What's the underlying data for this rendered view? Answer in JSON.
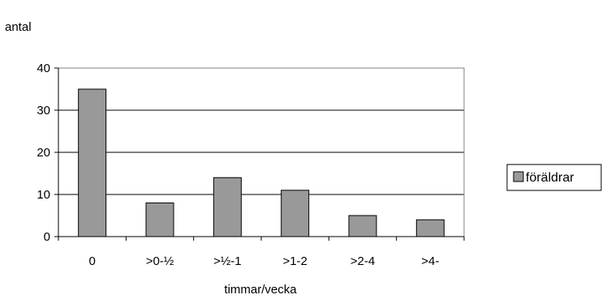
{
  "chart_data": {
    "type": "bar",
    "title": "",
    "ylabel": "antal",
    "xlabel": "timmar/vecka",
    "categories": [
      "0",
      ">0-½",
      ">½-1",
      ">1-2",
      ">2-4",
      ">4-"
    ],
    "series": [
      {
        "name": "föräldrar",
        "values": [
          35,
          8,
          14,
          11,
          5,
          4
        ]
      }
    ],
    "ylim": [
      0,
      40
    ],
    "yticks": [
      0,
      10,
      20,
      30,
      40
    ],
    "grid": true,
    "legend": "right",
    "colors": {
      "bar_fill": "#999999",
      "bar_stroke": "#000000",
      "plot_border": "#808080",
      "axis": "#000000"
    }
  }
}
